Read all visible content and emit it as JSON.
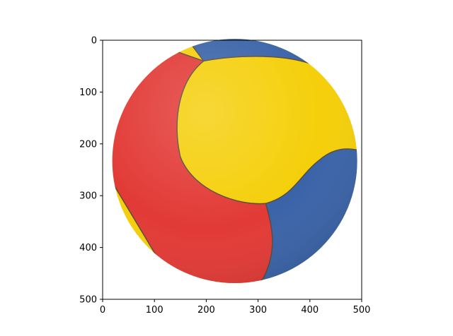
{
  "chart_data": {
    "type": "image",
    "xlim": [
      0,
      500
    ],
    "ylim": [
      500,
      0
    ],
    "x_ticks": [
      "0",
      "100",
      "200",
      "300",
      "400",
      "500"
    ],
    "y_ticks": [
      "0",
      "100",
      "200",
      "300",
      "400",
      "500"
    ],
    "x_tick_values": [
      0,
      100,
      200,
      300,
      400,
      500
    ],
    "y_tick_values": [
      0,
      100,
      200,
      300,
      400,
      500
    ],
    "grid": false,
    "image_subject": "volleyball",
    "colors": {
      "red": "#e23a36",
      "yellow": "#f5cf0a",
      "blue": "#3a63a8",
      "seam": "#5a4a3a"
    }
  }
}
